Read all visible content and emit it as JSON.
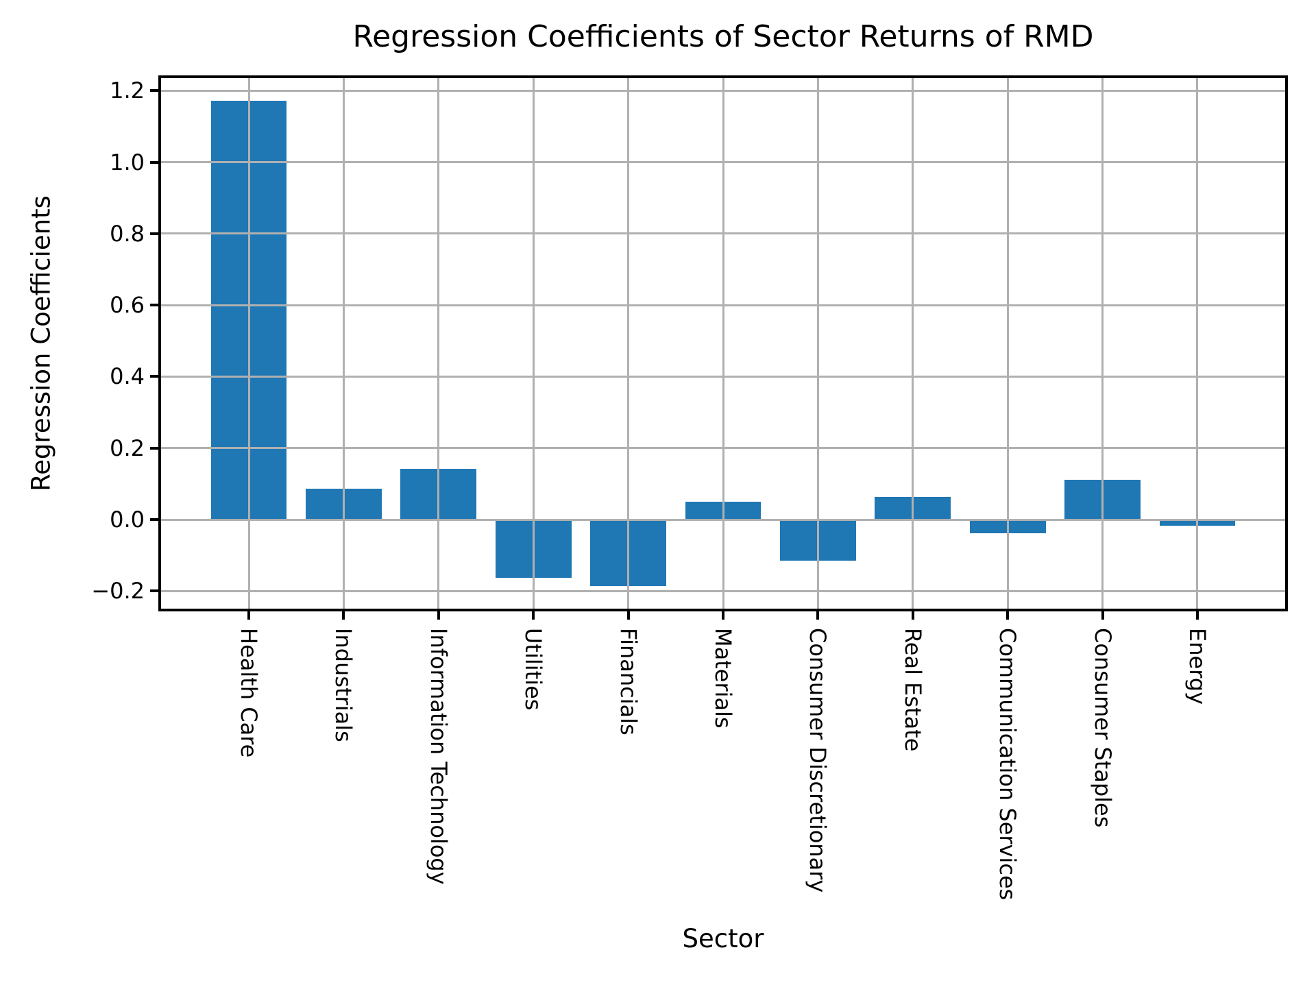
{
  "chart_data": {
    "type": "bar",
    "title": "Regression Coefficients of Sector Returns of RMD",
    "xlabel": "Sector",
    "ylabel": "Regression Coefficients",
    "categories": [
      "Health Care",
      "Industrials",
      "Information Technology",
      "Utilities",
      "Financials",
      "Materials",
      "Consumer Discretionary",
      "Real Estate",
      "Communication Services",
      "Consumer Staples",
      "Energy"
    ],
    "values": [
      1.172,
      0.086,
      0.142,
      -0.163,
      -0.186,
      0.05,
      -0.115,
      0.063,
      -0.038,
      0.111,
      -0.017
    ],
    "yticks": [
      1.2,
      1.0,
      0.8,
      0.6,
      0.4,
      0.2,
      0.0,
      -0.2
    ],
    "ytick_labels": [
      "1.2",
      "1.0",
      "0.8",
      "0.6",
      "0.4",
      "0.2",
      "0.0",
      "−0.2"
    ],
    "ylim": [
      -0.253,
      1.239
    ],
    "grid": true,
    "grid_on_top": true,
    "legend_position": "none",
    "bar_color": "#1f77b4",
    "grid_color": "#b0b0b0",
    "spine_color": "#000000",
    "text_color": "#000000",
    "background_color": "#ffffff"
  }
}
